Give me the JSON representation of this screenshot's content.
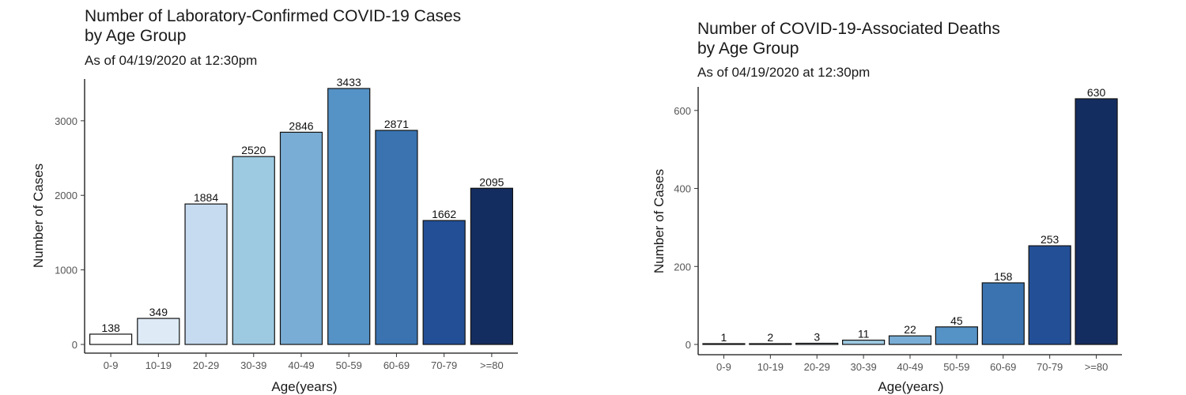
{
  "chart_data": [
    {
      "type": "bar",
      "title_line1": "Number of Laboratory-Confirmed COVID-19 Cases",
      "title_line2": "by Age Group",
      "subtitle": "As of 04/19/2020 at 12:30pm",
      "xlabel": "Age(years)",
      "ylabel": "Number of Cases",
      "categories": [
        "0-9",
        "10-19",
        "20-29",
        "30-39",
        "40-49",
        "50-59",
        "60-69",
        "70-79",
        ">=80"
      ],
      "values": [
        138,
        349,
        1884,
        2520,
        2846,
        3433,
        2871,
        1662,
        2095
      ],
      "yticks": [
        0,
        1000,
        2000,
        3000
      ],
      "ylim": [
        0,
        3433
      ],
      "colors": [
        "#ffffff",
        "#deebf7",
        "#c6dbef",
        "#9ecae1",
        "#79add5",
        "#5592c6",
        "#3a73b0",
        "#234f96",
        "#142d60"
      ],
      "grid": false
    },
    {
      "type": "bar",
      "title_line1": "Number of COVID-19-Associated Deaths",
      "title_line2": "by Age Group",
      "subtitle": "As of 04/19/2020 at 12:30pm",
      "xlabel": "Age(years)",
      "ylabel": "Number of Cases",
      "categories": [
        "0-9",
        "10-19",
        "20-29",
        "30-39",
        "40-49",
        "50-59",
        "60-69",
        "70-79",
        ">=80"
      ],
      "values": [
        1,
        2,
        3,
        11,
        22,
        45,
        158,
        253,
        630
      ],
      "yticks": [
        0,
        200,
        400,
        600
      ],
      "ylim": [
        0,
        630
      ],
      "colors": [
        "#ffffff",
        "#deebf7",
        "#c6dbef",
        "#9ecae1",
        "#79add5",
        "#5592c6",
        "#3a73b0",
        "#234f96",
        "#142d60"
      ],
      "grid": false
    }
  ]
}
